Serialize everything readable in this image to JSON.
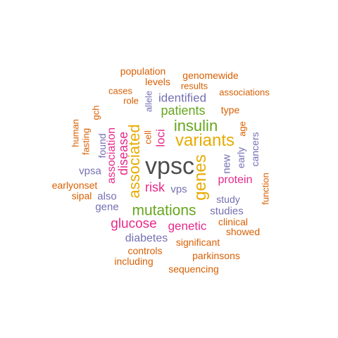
{
  "palette": {
    "dark": "#4d4d4d",
    "orange": "#d95f02",
    "purple": "#7570b3",
    "magenta": "#e7298a",
    "green": "#66a61e",
    "gold": "#e6ab02"
  },
  "words": [
    {
      "text": "vpsc",
      "color": "#4d4d4d",
      "vertical": false
    },
    {
      "text": "variants",
      "color": "#e6ab02",
      "vertical": false
    },
    {
      "text": "mutations",
      "color": "#66a61e",
      "vertical": false
    },
    {
      "text": "genes",
      "color": "#e6ab02",
      "vertical": true
    },
    {
      "text": "associated",
      "color": "#e6ab02",
      "vertical": true
    },
    {
      "text": "insulin",
      "color": "#66a61e",
      "vertical": false
    },
    {
      "text": "patients",
      "color": "#66a61e",
      "vertical": false
    },
    {
      "text": "glucose",
      "color": "#e7298a",
      "vertical": false
    },
    {
      "text": "genetic",
      "color": "#e7298a",
      "vertical": false
    },
    {
      "text": "disease",
      "color": "#e7298a",
      "vertical": true
    },
    {
      "text": "risk",
      "color": "#e7298a",
      "vertical": false
    },
    {
      "text": "protein",
      "color": "#e7298a",
      "vertical": false
    },
    {
      "text": "association",
      "color": "#e7298a",
      "vertical": true
    },
    {
      "text": "loci",
      "color": "#e7298a",
      "vertical": true
    },
    {
      "text": "identified",
      "color": "#7570b3",
      "vertical": false
    },
    {
      "text": "studies",
      "color": "#7570b3",
      "vertical": false
    },
    {
      "text": "diabetes",
      "color": "#7570b3",
      "vertical": false
    },
    {
      "text": "new",
      "color": "#7570b3",
      "vertical": true
    },
    {
      "text": "cancers",
      "color": "#7570b3",
      "vertical": true
    },
    {
      "text": "found",
      "color": "#7570b3",
      "vertical": true
    },
    {
      "text": "vps",
      "color": "#7570b3",
      "vertical": false
    },
    {
      "text": "also",
      "color": "#7570b3",
      "vertical": false
    },
    {
      "text": "gene",
      "color": "#7570b3",
      "vertical": false
    },
    {
      "text": "vpsa",
      "color": "#7570b3",
      "vertical": false
    },
    {
      "text": "allele",
      "color": "#7570b3",
      "vertical": true
    },
    {
      "text": "study",
      "color": "#7570b3",
      "vertical": false
    },
    {
      "text": "early",
      "color": "#7570b3",
      "vertical": true
    },
    {
      "text": "population",
      "color": "#d95f02",
      "vertical": false
    },
    {
      "text": "genomewide",
      "color": "#d95f02",
      "vertical": false
    },
    {
      "text": "levels",
      "color": "#d95f02",
      "vertical": false
    },
    {
      "text": "results",
      "color": "#d95f02",
      "vertical": false
    },
    {
      "text": "cases",
      "color": "#d95f02",
      "vertical": false
    },
    {
      "text": "associations",
      "color": "#d95f02",
      "vertical": false
    },
    {
      "text": "role",
      "color": "#d95f02",
      "vertical": false
    },
    {
      "text": "type",
      "color": "#d95f02",
      "vertical": false
    },
    {
      "text": "gch",
      "color": "#d95f02",
      "vertical": true
    },
    {
      "text": "cell",
      "color": "#d95f02",
      "vertical": true
    },
    {
      "text": "age",
      "color": "#d95f02",
      "vertical": true
    },
    {
      "text": "human",
      "color": "#d95f02",
      "vertical": true
    },
    {
      "text": "fasting",
      "color": "#d95f02",
      "vertical": true
    },
    {
      "text": "earlyonset",
      "color": "#d95f02",
      "vertical": false
    },
    {
      "text": "sipal",
      "color": "#d95f02",
      "vertical": false
    },
    {
      "text": "function",
      "color": "#d95f02",
      "vertical": true
    },
    {
      "text": "clinical",
      "color": "#d95f02",
      "vertical": false
    },
    {
      "text": "showed",
      "color": "#d95f02",
      "vertical": false
    },
    {
      "text": "significant",
      "color": "#d95f02",
      "vertical": false
    },
    {
      "text": "controls",
      "color": "#d95f02",
      "vertical": false
    },
    {
      "text": "parkinsons",
      "color": "#d95f02",
      "vertical": false
    },
    {
      "text": "including",
      "color": "#d95f02",
      "vertical": false
    },
    {
      "text": "sequencing",
      "color": "#d95f02",
      "vertical": false
    }
  ]
}
